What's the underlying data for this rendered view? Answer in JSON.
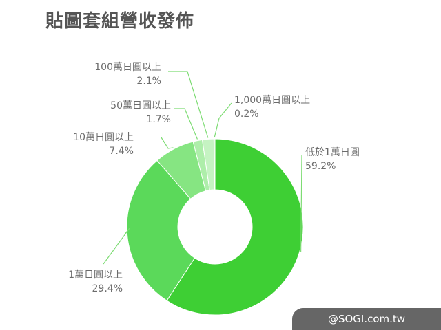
{
  "title": "貼圖套組營收發佈",
  "watermark": "@SOGI.com.tw",
  "chart_data": {
    "type": "pie",
    "title": "貼圖套組營收發佈",
    "slices": [
      {
        "label": "低於1萬日圓",
        "value": 59.2,
        "display": "59.2%",
        "color": "#3ecf34"
      },
      {
        "label": "1萬日圓以上",
        "value": 29.4,
        "display": "29.4%",
        "color": "#5bd95a"
      },
      {
        "label": "10萬日圓以上",
        "value": 7.4,
        "display": "7.4%",
        "color": "#86e582"
      },
      {
        "label": "50萬日圓以上",
        "value": 1.7,
        "display": "1.7%",
        "color": "#aeeeaa"
      },
      {
        "label": "100萬日圓以上",
        "value": 2.1,
        "display": "2.1%",
        "color": "#c5f3c2"
      },
      {
        "label": "1,000萬日圓以上",
        "value": 0.2,
        "display": "0.2%",
        "color": "#daf7d7"
      }
    ]
  }
}
